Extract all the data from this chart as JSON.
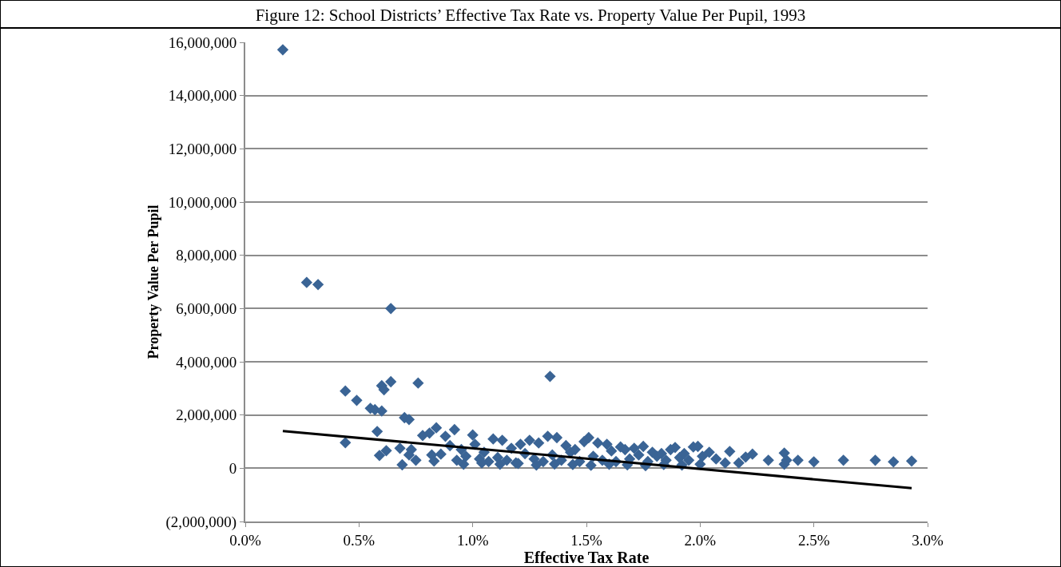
{
  "chart_data": {
    "type": "scatter",
    "title": "Figure 12: School Districts’ Effective Tax Rate vs. Property Value Per Pupil, 1993",
    "xlabel": "Effective Tax Rate",
    "ylabel": "Property Value Per Pupil",
    "xlim": [
      0,
      3
    ],
    "xticks": [
      {
        "value": 0,
        "label": "0.0%"
      },
      {
        "value": 0.5,
        "label": "0.5%"
      },
      {
        "value": 1,
        "label": "1.0%"
      },
      {
        "value": 1.5,
        "label": "1.5%"
      },
      {
        "value": 2,
        "label": "2.0%"
      },
      {
        "value": 2.5,
        "label": "2.5%"
      },
      {
        "value": 3,
        "label": "3.0%"
      }
    ],
    "ylim": [
      -2000000,
      16000000
    ],
    "yticks": [
      {
        "value": -2000000,
        "label": "(2,000,000)"
      },
      {
        "value": 0,
        "label": "0"
      },
      {
        "value": 2000000,
        "label": "2,000,000"
      },
      {
        "value": 4000000,
        "label": "4,000,000"
      },
      {
        "value": 6000000,
        "label": "6,000,000"
      },
      {
        "value": 8000000,
        "label": "8,000,000"
      },
      {
        "value": 10000000,
        "label": "10,000,000"
      },
      {
        "value": 12000000,
        "label": "12,000,000"
      },
      {
        "value": 14000000,
        "label": "14,000,000"
      },
      {
        "value": 16000000,
        "label": "16,000,000"
      }
    ],
    "grid": "y",
    "marker": "diamond",
    "series": [
      {
        "color": "#3a6495",
        "x": [
          0.165,
          0.27,
          0.32,
          0.64,
          0.44,
          0.49,
          0.55,
          0.57,
          0.6,
          0.6,
          0.61,
          0.64,
          0.76,
          1.34,
          0.7,
          0.72,
          0.58,
          0.44,
          0.59,
          0.62,
          0.68,
          0.69,
          0.73,
          0.72,
          0.75,
          0.78,
          0.84,
          0.81,
          0.92,
          0.88,
          0.82,
          0.86,
          0.83,
          0.9,
          0.93,
          0.95,
          0.97,
          1.0,
          1.01,
          1.03,
          1.05,
          1.07,
          1.09,
          1.11,
          1.13,
          1.15,
          1.17,
          1.19,
          1.21,
          1.23,
          1.25,
          1.27,
          1.29,
          1.31,
          1.33,
          1.35,
          1.37,
          1.39,
          1.41,
          1.43,
          1.45,
          1.47,
          1.49,
          1.51,
          1.53,
          1.55,
          1.57,
          1.59,
          1.61,
          1.63,
          1.65,
          1.67,
          1.69,
          1.71,
          1.73,
          1.75,
          1.77,
          1.79,
          1.81,
          1.83,
          1.85,
          1.87,
          1.89,
          1.91,
          1.93,
          1.95,
          1.97,
          1.99,
          2.01,
          2.04,
          2.07,
          2.11,
          2.13,
          2.17,
          2.2,
          2.23,
          2.3,
          2.37,
          2.38,
          2.37,
          2.43,
          2.5,
          2.63,
          2.77,
          2.85,
          2.93,
          0.96,
          1.04,
          1.12,
          1.2,
          1.28,
          1.36,
          1.44,
          1.52,
          1.6,
          1.68,
          1.76,
          1.84,
          1.92,
          2.0
        ],
        "values": [
          15720000,
          6980000,
          6900000,
          6000000,
          2900000,
          2550000,
          2250000,
          2200000,
          2150000,
          3100000,
          2950000,
          3250000,
          3200000,
          3450000,
          1900000,
          1830000,
          1380000,
          960000,
          480000,
          660000,
          750000,
          130000,
          700000,
          500000,
          300000,
          1230000,
          1520000,
          1320000,
          1450000,
          1200000,
          500000,
          530000,
          270000,
          850000,
          300000,
          700000,
          450000,
          1250000,
          900000,
          350000,
          600000,
          250000,
          1100000,
          400000,
          1050000,
          300000,
          750000,
          200000,
          900000,
          550000,
          1050000,
          350000,
          950000,
          250000,
          1200000,
          500000,
          1150000,
          300000,
          850000,
          600000,
          700000,
          250000,
          1000000,
          1150000,
          450000,
          950000,
          300000,
          900000,
          650000,
          250000,
          800000,
          700000,
          350000,
          750000,
          500000,
          820000,
          250000,
          600000,
          450000,
          550000,
          300000,
          700000,
          780000,
          400000,
          550000,
          300000,
          800000,
          820000,
          450000,
          600000,
          350000,
          200000,
          630000,
          200000,
          420000,
          530000,
          300000,
          570000,
          300000,
          150000,
          300000,
          240000,
          300000,
          300000,
          240000,
          270000,
          150000,
          200000,
          150000,
          180000,
          120000,
          160000,
          140000,
          110000,
          150000,
          130000,
          100000,
          140000,
          120000,
          150000
        ]
      },
      {
        "type": "line",
        "marker": "none",
        "color": "#000000",
        "x": [
          0.165,
          2.93
        ],
        "values": [
          1400000,
          -750000
        ]
      }
    ]
  }
}
